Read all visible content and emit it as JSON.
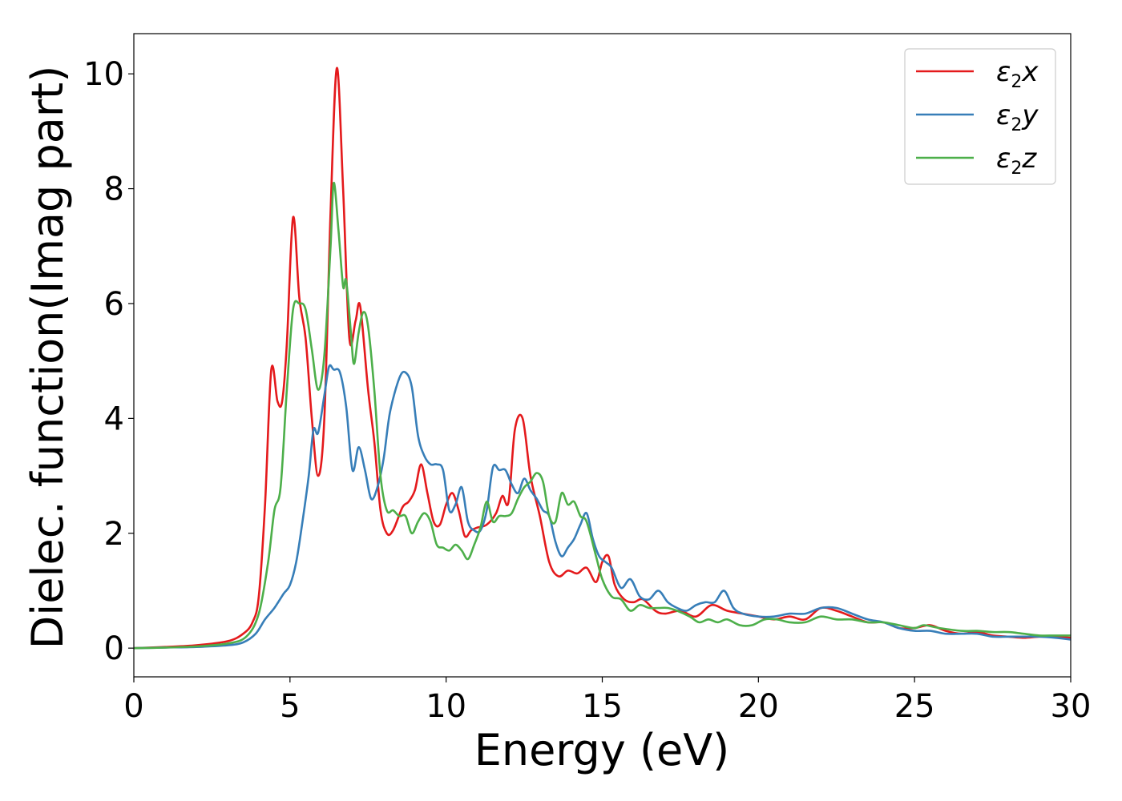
{
  "chart_data": {
    "type": "line",
    "xlabel": "Energy (eV)",
    "ylabel": "Dielec. function(Imag part)",
    "xlim": [
      0,
      30
    ],
    "ylim": [
      -0.5,
      10.7
    ],
    "xticks": [
      "0",
      "5",
      "10",
      "15",
      "20",
      "25",
      "30"
    ],
    "yticks": [
      "0",
      "2",
      "4",
      "6",
      "8",
      "10"
    ],
    "grid": false,
    "legend_position": "top-right",
    "series": [
      {
        "name": "ε2x",
        "legend": {
          "base": "ε",
          "sub": "2",
          "tail": "x"
        },
        "color": "#e41a1c",
        "points": [
          [
            0,
            0
          ],
          [
            1,
            0.02
          ],
          [
            2,
            0.05
          ],
          [
            3,
            0.12
          ],
          [
            3.5,
            0.25
          ],
          [
            3.8,
            0.45
          ],
          [
            4.0,
            0.9
          ],
          [
            4.2,
            2.5
          ],
          [
            4.4,
            4.85
          ],
          [
            4.6,
            4.3
          ],
          [
            4.75,
            4.3
          ],
          [
            4.9,
            5.3
          ],
          [
            5.1,
            7.5
          ],
          [
            5.3,
            6.1
          ],
          [
            5.5,
            5.4
          ],
          [
            5.7,
            4.0
          ],
          [
            5.9,
            3.0
          ],
          [
            6.1,
            4.0
          ],
          [
            6.3,
            7.6
          ],
          [
            6.5,
            10.1
          ],
          [
            6.7,
            8.0
          ],
          [
            6.9,
            5.4
          ],
          [
            7.1,
            5.7
          ],
          [
            7.25,
            5.95
          ],
          [
            7.5,
            4.5
          ],
          [
            7.7,
            3.6
          ],
          [
            7.9,
            2.4
          ],
          [
            8.1,
            2.0
          ],
          [
            8.3,
            2.05
          ],
          [
            8.6,
            2.45
          ],
          [
            8.8,
            2.55
          ],
          [
            9.0,
            2.75
          ],
          [
            9.2,
            3.2
          ],
          [
            9.4,
            2.7
          ],
          [
            9.6,
            2.2
          ],
          [
            9.8,
            2.15
          ],
          [
            10.0,
            2.5
          ],
          [
            10.2,
            2.7
          ],
          [
            10.4,
            2.4
          ],
          [
            10.6,
            1.95
          ],
          [
            10.8,
            2.05
          ],
          [
            11.0,
            2.1
          ],
          [
            11.3,
            2.15
          ],
          [
            11.6,
            2.35
          ],
          [
            11.8,
            2.65
          ],
          [
            12.0,
            2.55
          ],
          [
            12.2,
            3.8
          ],
          [
            12.45,
            4.0
          ],
          [
            12.7,
            3.0
          ],
          [
            13.0,
            2.3
          ],
          [
            13.3,
            1.5
          ],
          [
            13.6,
            1.25
          ],
          [
            13.9,
            1.35
          ],
          [
            14.2,
            1.3
          ],
          [
            14.5,
            1.4
          ],
          [
            14.8,
            1.15
          ],
          [
            15.0,
            1.5
          ],
          [
            15.2,
            1.6
          ],
          [
            15.4,
            1.1
          ],
          [
            15.7,
            0.85
          ],
          [
            16.0,
            0.8
          ],
          [
            16.3,
            0.85
          ],
          [
            16.7,
            0.65
          ],
          [
            17.0,
            0.6
          ],
          [
            17.5,
            0.65
          ],
          [
            18.0,
            0.55
          ],
          [
            18.5,
            0.75
          ],
          [
            19.0,
            0.65
          ],
          [
            19.5,
            0.6
          ],
          [
            20.0,
            0.55
          ],
          [
            20.5,
            0.5
          ],
          [
            21.0,
            0.55
          ],
          [
            21.5,
            0.5
          ],
          [
            22.0,
            0.7
          ],
          [
            22.5,
            0.65
          ],
          [
            23.0,
            0.55
          ],
          [
            23.5,
            0.45
          ],
          [
            24.0,
            0.45
          ],
          [
            24.5,
            0.35
          ],
          [
            25.0,
            0.35
          ],
          [
            25.5,
            0.4
          ],
          [
            26.0,
            0.3
          ],
          [
            26.5,
            0.25
          ],
          [
            27.0,
            0.28
          ],
          [
            27.5,
            0.22
          ],
          [
            28.0,
            0.2
          ],
          [
            28.5,
            0.18
          ],
          [
            29.0,
            0.2
          ],
          [
            29.5,
            0.2
          ],
          [
            30.0,
            0.18
          ]
        ]
      },
      {
        "name": "ε2y",
        "legend": {
          "base": "ε",
          "sub": "2",
          "tail": "y"
        },
        "color": "#377eb8",
        "points": [
          [
            0,
            0
          ],
          [
            1,
            0.01
          ],
          [
            2,
            0.02
          ],
          [
            3,
            0.05
          ],
          [
            3.5,
            0.1
          ],
          [
            3.9,
            0.25
          ],
          [
            4.2,
            0.5
          ],
          [
            4.5,
            0.7
          ],
          [
            4.8,
            0.95
          ],
          [
            5.0,
            1.1
          ],
          [
            5.2,
            1.5
          ],
          [
            5.4,
            2.2
          ],
          [
            5.6,
            3.0
          ],
          [
            5.75,
            3.8
          ],
          [
            5.9,
            3.75
          ],
          [
            6.1,
            4.4
          ],
          [
            6.25,
            4.9
          ],
          [
            6.4,
            4.85
          ],
          [
            6.6,
            4.8
          ],
          [
            6.8,
            4.2
          ],
          [
            7.0,
            3.1
          ],
          [
            7.2,
            3.5
          ],
          [
            7.4,
            3.1
          ],
          [
            7.6,
            2.6
          ],
          [
            7.8,
            2.8
          ],
          [
            8.0,
            3.3
          ],
          [
            8.2,
            4.1
          ],
          [
            8.5,
            4.7
          ],
          [
            8.7,
            4.8
          ],
          [
            8.9,
            4.55
          ],
          [
            9.1,
            3.7
          ],
          [
            9.3,
            3.35
          ],
          [
            9.5,
            3.2
          ],
          [
            9.7,
            3.2
          ],
          [
            9.9,
            3.1
          ],
          [
            10.1,
            2.4
          ],
          [
            10.3,
            2.5
          ],
          [
            10.5,
            2.8
          ],
          [
            10.7,
            2.2
          ],
          [
            10.9,
            2.05
          ],
          [
            11.1,
            2.05
          ],
          [
            11.3,
            2.4
          ],
          [
            11.5,
            3.15
          ],
          [
            11.7,
            3.1
          ],
          [
            11.9,
            3.1
          ],
          [
            12.1,
            2.85
          ],
          [
            12.3,
            2.7
          ],
          [
            12.5,
            2.95
          ],
          [
            12.7,
            2.75
          ],
          [
            12.9,
            2.6
          ],
          [
            13.1,
            2.4
          ],
          [
            13.3,
            2.3
          ],
          [
            13.5,
            1.85
          ],
          [
            13.7,
            1.6
          ],
          [
            13.9,
            1.75
          ],
          [
            14.1,
            1.9
          ],
          [
            14.3,
            2.15
          ],
          [
            14.5,
            2.35
          ],
          [
            14.7,
            1.9
          ],
          [
            14.9,
            1.6
          ],
          [
            15.1,
            1.5
          ],
          [
            15.3,
            1.4
          ],
          [
            15.6,
            1.05
          ],
          [
            15.9,
            1.2
          ],
          [
            16.2,
            0.9
          ],
          [
            16.5,
            0.85
          ],
          [
            16.8,
            1.0
          ],
          [
            17.1,
            0.8
          ],
          [
            17.4,
            0.7
          ],
          [
            17.7,
            0.65
          ],
          [
            18.0,
            0.75
          ],
          [
            18.3,
            0.8
          ],
          [
            18.6,
            0.8
          ],
          [
            18.9,
            1.0
          ],
          [
            19.2,
            0.7
          ],
          [
            19.5,
            0.6
          ],
          [
            20.0,
            0.55
          ],
          [
            20.5,
            0.55
          ],
          [
            21.0,
            0.6
          ],
          [
            21.5,
            0.6
          ],
          [
            22.0,
            0.7
          ],
          [
            22.5,
            0.7
          ],
          [
            23.0,
            0.6
          ],
          [
            23.5,
            0.5
          ],
          [
            24.0,
            0.45
          ],
          [
            24.5,
            0.35
          ],
          [
            25.0,
            0.3
          ],
          [
            25.5,
            0.3
          ],
          [
            26.0,
            0.25
          ],
          [
            26.5,
            0.25
          ],
          [
            27.0,
            0.25
          ],
          [
            27.5,
            0.2
          ],
          [
            28.0,
            0.2
          ],
          [
            28.5,
            0.2
          ],
          [
            29.0,
            0.2
          ],
          [
            29.5,
            0.18
          ],
          [
            30.0,
            0.15
          ]
        ]
      },
      {
        "name": "ε2z",
        "legend": {
          "base": "ε",
          "sub": "2",
          "tail": "z"
        },
        "color": "#4daf4a",
        "points": [
          [
            0,
            0
          ],
          [
            1,
            0.01
          ],
          [
            2,
            0.03
          ],
          [
            3,
            0.08
          ],
          [
            3.6,
            0.2
          ],
          [
            4.0,
            0.6
          ],
          [
            4.3,
            1.5
          ],
          [
            4.5,
            2.4
          ],
          [
            4.7,
            2.8
          ],
          [
            4.9,
            4.5
          ],
          [
            5.1,
            5.9
          ],
          [
            5.3,
            6.0
          ],
          [
            5.5,
            5.9
          ],
          [
            5.7,
            5.2
          ],
          [
            5.9,
            4.5
          ],
          [
            6.1,
            5.1
          ],
          [
            6.3,
            7.0
          ],
          [
            6.4,
            8.1
          ],
          [
            6.55,
            7.3
          ],
          [
            6.7,
            6.3
          ],
          [
            6.8,
            6.4
          ],
          [
            6.95,
            5.5
          ],
          [
            7.05,
            4.95
          ],
          [
            7.2,
            5.5
          ],
          [
            7.35,
            5.85
          ],
          [
            7.5,
            5.6
          ],
          [
            7.7,
            4.5
          ],
          [
            7.9,
            3.0
          ],
          [
            8.1,
            2.4
          ],
          [
            8.3,
            2.4
          ],
          [
            8.5,
            2.3
          ],
          [
            8.7,
            2.3
          ],
          [
            8.9,
            2.0
          ],
          [
            9.1,
            2.2
          ],
          [
            9.3,
            2.35
          ],
          [
            9.5,
            2.2
          ],
          [
            9.7,
            1.8
          ],
          [
            9.9,
            1.75
          ],
          [
            10.1,
            1.7
          ],
          [
            10.3,
            1.8
          ],
          [
            10.5,
            1.7
          ],
          [
            10.7,
            1.55
          ],
          [
            10.9,
            1.8
          ],
          [
            11.1,
            2.1
          ],
          [
            11.3,
            2.55
          ],
          [
            11.5,
            2.2
          ],
          [
            11.7,
            2.3
          ],
          [
            11.9,
            2.3
          ],
          [
            12.1,
            2.35
          ],
          [
            12.3,
            2.6
          ],
          [
            12.5,
            2.8
          ],
          [
            12.7,
            2.9
          ],
          [
            12.9,
            3.05
          ],
          [
            13.1,
            2.9
          ],
          [
            13.3,
            2.3
          ],
          [
            13.5,
            2.2
          ],
          [
            13.7,
            2.7
          ],
          [
            13.9,
            2.5
          ],
          [
            14.1,
            2.55
          ],
          [
            14.3,
            2.3
          ],
          [
            14.5,
            2.2
          ],
          [
            14.8,
            1.6
          ],
          [
            15.0,
            1.2
          ],
          [
            15.3,
            0.9
          ],
          [
            15.6,
            0.85
          ],
          [
            15.9,
            0.65
          ],
          [
            16.2,
            0.75
          ],
          [
            16.5,
            0.7
          ],
          [
            16.8,
            0.7
          ],
          [
            17.1,
            0.7
          ],
          [
            17.4,
            0.65
          ],
          [
            17.8,
            0.55
          ],
          [
            18.1,
            0.45
          ],
          [
            18.4,
            0.5
          ],
          [
            18.7,
            0.45
          ],
          [
            19.0,
            0.5
          ],
          [
            19.4,
            0.4
          ],
          [
            19.8,
            0.4
          ],
          [
            20.2,
            0.5
          ],
          [
            20.6,
            0.5
          ],
          [
            21.0,
            0.45
          ],
          [
            21.5,
            0.45
          ],
          [
            22.0,
            0.55
          ],
          [
            22.5,
            0.5
          ],
          [
            23.0,
            0.5
          ],
          [
            23.5,
            0.45
          ],
          [
            24.0,
            0.45
          ],
          [
            24.5,
            0.4
          ],
          [
            25.0,
            0.35
          ],
          [
            25.3,
            0.4
          ],
          [
            25.8,
            0.35
          ],
          [
            26.5,
            0.3
          ],
          [
            27.0,
            0.3
          ],
          [
            27.5,
            0.28
          ],
          [
            28.0,
            0.28
          ],
          [
            28.5,
            0.25
          ],
          [
            29.0,
            0.22
          ],
          [
            29.5,
            0.22
          ],
          [
            30.0,
            0.22
          ]
        ]
      }
    ]
  }
}
